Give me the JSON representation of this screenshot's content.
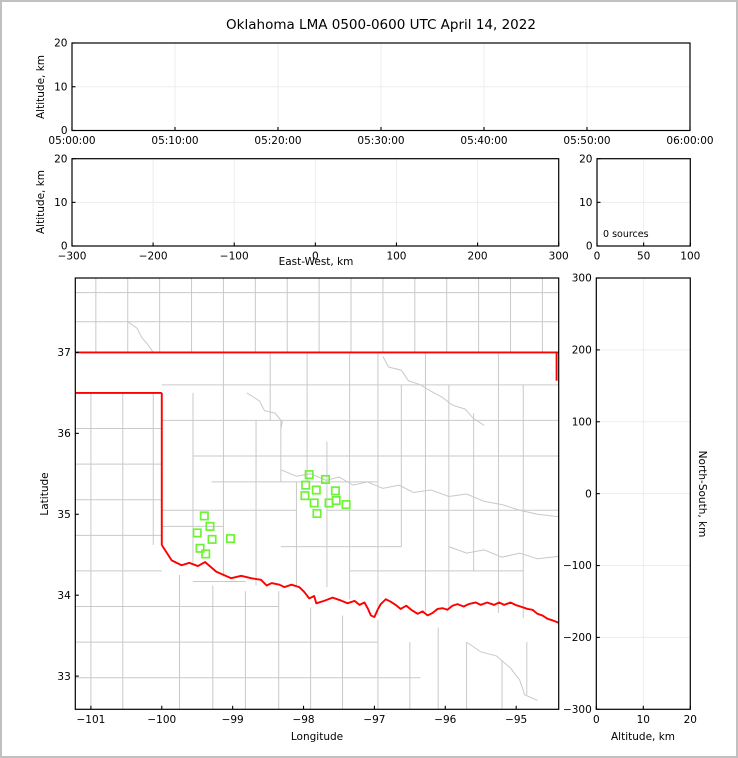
{
  "title": "Oklahoma LMA 0500-0600 UTC April 14, 2022",
  "colors": {
    "background": "#ffffff",
    "frame_border": "#c0c0c0",
    "axis": "#000000",
    "grid": "#ededed",
    "county_line": "#c9c9c9",
    "state_border": "#ff0000",
    "station_marker": "#6df335"
  },
  "chart_data": [
    {
      "panel": "time_height",
      "type": "scatter",
      "title": "Oklahoma LMA 0500-0600 UTC April 14, 2022",
      "ylabel": "Altitude, km",
      "x_range": [
        0,
        3600
      ],
      "y_range": [
        0,
        20
      ],
      "x_tick_values": [
        0,
        600,
        1200,
        1800,
        2400,
        3000,
        3600
      ],
      "x_tick_labels": [
        "05:00:00",
        "05:10:00",
        "05:20:00",
        "05:30:00",
        "05:40:00",
        "05:50:00",
        "06:00:00"
      ],
      "y_tick_values": [
        0,
        10,
        20
      ],
      "y_tick_labels": [
        "0",
        "10",
        "20"
      ],
      "grid": true,
      "series": []
    },
    {
      "panel": "east_west_height",
      "type": "scatter",
      "xlabel": "East-West, km",
      "ylabel": "Altitude, km",
      "x_range": [
        -300,
        300
      ],
      "y_range": [
        0,
        20
      ],
      "x_tick_values": [
        -300,
        -200,
        -100,
        0,
        100,
        200,
        300
      ],
      "x_tick_labels": [
        "−300",
        "−200",
        "−100",
        "0",
        "100",
        "200",
        "300"
      ],
      "y_tick_values": [
        0,
        10,
        20
      ],
      "y_tick_labels": [
        "0",
        "10",
        "20"
      ],
      "grid": true,
      "series": []
    },
    {
      "panel": "source_histogram",
      "type": "bar",
      "annotation": "0 sources",
      "x_range": [
        0,
        100
      ],
      "y_range": [
        0,
        20
      ],
      "x_tick_values": [
        0,
        50,
        100
      ],
      "x_tick_labels": [
        "0",
        "50",
        "100"
      ],
      "y_tick_values": [
        0,
        10,
        20
      ],
      "y_tick_labels": [
        "0",
        "10",
        "20"
      ],
      "grid": true,
      "series": []
    },
    {
      "panel": "plan_view",
      "type": "scatter",
      "xlabel": "Longitude",
      "ylabel": "Latitude",
      "x_range": [
        -101.22,
        -94.4
      ],
      "y_range": [
        32.59,
        37.92
      ],
      "x_tick_values": [
        -101,
        -100,
        -99,
        -98,
        -97,
        -96,
        -95
      ],
      "x_tick_labels": [
        "−101",
        "−100",
        "−99",
        "−98",
        "−97",
        "−96",
        "−95"
      ],
      "y_tick_values": [
        33,
        34,
        35,
        36,
        37
      ],
      "y_tick_labels": [
        "33",
        "34",
        "35",
        "36",
        "37"
      ],
      "grid": false,
      "stations": [
        [
          -97.92,
          35.49
        ],
        [
          -97.69,
          35.43
        ],
        [
          -97.97,
          35.36
        ],
        [
          -97.82,
          35.3
        ],
        [
          -97.98,
          35.23
        ],
        [
          -97.55,
          35.29
        ],
        [
          -97.54,
          35.17
        ],
        [
          -97.85,
          35.14
        ],
        [
          -97.64,
          35.14
        ],
        [
          -97.4,
          35.12
        ],
        [
          -97.81,
          35.01
        ],
        [
          -99.4,
          34.98
        ],
        [
          -99.32,
          34.85
        ],
        [
          -99.5,
          34.77
        ],
        [
          -99.29,
          34.69
        ],
        [
          -99.03,
          34.7
        ],
        [
          -99.46,
          34.58
        ],
        [
          -99.38,
          34.51
        ]
      ],
      "state_border": {
        "segments": [
          [
            [
              -101.22,
              37.0
            ],
            [
              -94.4,
              37.0
            ]
          ],
          [
            [
              -94.43,
              37.0
            ],
            [
              -94.43,
              36.65
            ]
          ],
          [
            [
              -101.22,
              36.5
            ],
            [
              -100.0,
              36.5
            ]
          ],
          [
            [
              -100.0,
              36.5
            ],
            [
              -100.0,
              34.62
            ]
          ]
        ],
        "red_river": [
          [
            -100.0,
            34.62
          ],
          [
            -99.86,
            34.43
          ],
          [
            -99.72,
            34.37
          ],
          [
            -99.61,
            34.4
          ],
          [
            -99.49,
            34.36
          ],
          [
            -99.39,
            34.41
          ],
          [
            -99.23,
            34.29
          ],
          [
            -99.02,
            34.21
          ],
          [
            -98.88,
            34.24
          ],
          [
            -98.74,
            34.21
          ],
          [
            -98.6,
            34.19
          ],
          [
            -98.52,
            34.12
          ],
          [
            -98.45,
            34.15
          ],
          [
            -98.34,
            34.13
          ],
          [
            -98.27,
            34.1
          ],
          [
            -98.17,
            34.13
          ],
          [
            -98.06,
            34.1
          ],
          [
            -97.99,
            34.04
          ],
          [
            -97.92,
            33.96
          ],
          [
            -97.85,
            33.99
          ],
          [
            -97.82,
            33.9
          ],
          [
            -97.71,
            33.93
          ],
          [
            -97.59,
            33.97
          ],
          [
            -97.49,
            33.94
          ],
          [
            -97.38,
            33.9
          ],
          [
            -97.28,
            33.93
          ],
          [
            -97.21,
            33.88
          ],
          [
            -97.14,
            33.91
          ],
          [
            -97.09,
            33.83
          ],
          [
            -97.05,
            33.75
          ],
          [
            -97.0,
            33.73
          ],
          [
            -96.95,
            33.83
          ],
          [
            -96.91,
            33.89
          ],
          [
            -96.84,
            33.95
          ],
          [
            -96.77,
            33.92
          ],
          [
            -96.7,
            33.88
          ],
          [
            -96.63,
            33.83
          ],
          [
            -96.55,
            33.87
          ],
          [
            -96.48,
            33.82
          ],
          [
            -96.39,
            33.77
          ],
          [
            -96.32,
            33.8
          ],
          [
            -96.25,
            33.75
          ],
          [
            -96.18,
            33.78
          ],
          [
            -96.11,
            33.83
          ],
          [
            -96.04,
            33.84
          ],
          [
            -95.97,
            33.82
          ],
          [
            -95.9,
            33.87
          ],
          [
            -95.83,
            33.89
          ],
          [
            -95.74,
            33.86
          ],
          [
            -95.67,
            33.89
          ],
          [
            -95.57,
            33.91
          ],
          [
            -95.5,
            33.88
          ],
          [
            -95.41,
            33.91
          ],
          [
            -95.31,
            33.88
          ],
          [
            -95.24,
            33.91
          ],
          [
            -95.17,
            33.88
          ],
          [
            -95.08,
            33.91
          ],
          [
            -95.01,
            33.88
          ],
          [
            -94.94,
            33.86
          ],
          [
            -94.84,
            33.83
          ],
          [
            -94.77,
            33.82
          ],
          [
            -94.7,
            33.77
          ],
          [
            -94.63,
            33.75
          ],
          [
            -94.56,
            33.71
          ],
          [
            -94.49,
            33.69
          ],
          [
            -94.4,
            33.66
          ]
        ]
      },
      "counties": {
        "v": [
          [
            -100.93,
            37.92,
            37.0
          ],
          [
            -100.48,
            37.92,
            37.0
          ],
          [
            -100.03,
            37.92,
            37.0
          ],
          [
            -99.58,
            37.92,
            37.0
          ],
          [
            -99.13,
            37.92,
            37.0
          ],
          [
            -98.68,
            37.92,
            37.0
          ],
          [
            -98.23,
            37.92,
            37.0
          ],
          [
            -97.78,
            37.92,
            37.0
          ],
          [
            -97.33,
            37.92,
            37.0
          ],
          [
            -96.88,
            37.92,
            37.0
          ],
          [
            -96.43,
            37.92,
            37.0
          ],
          [
            -95.98,
            37.92,
            37.0
          ],
          [
            -95.53,
            37.92,
            37.0
          ],
          [
            -95.08,
            37.92,
            37.0
          ],
          [
            -94.63,
            37.92,
            37.0
          ],
          [
            -101.0,
            36.5,
            32.59
          ],
          [
            -100.55,
            36.5,
            32.59
          ],
          [
            -100.12,
            36.5,
            34.62
          ],
          [
            -99.56,
            36.5,
            34.4
          ],
          [
            -99.13,
            37.0,
            34.23
          ],
          [
            -98.67,
            36.16,
            34.12
          ],
          [
            -98.47,
            37.0,
            36.16
          ],
          [
            -98.32,
            36.16,
            35.4
          ],
          [
            -98.1,
            35.4,
            34.12
          ],
          [
            -97.95,
            37.0,
            35.4
          ],
          [
            -97.67,
            35.9,
            34.1
          ],
          [
            -97.35,
            37.0,
            33.95
          ],
          [
            -96.95,
            37.0,
            33.75
          ],
          [
            -96.62,
            36.6,
            34.6
          ],
          [
            -96.28,
            37.0,
            33.8
          ],
          [
            -95.95,
            36.6,
            33.85
          ],
          [
            -95.6,
            36.25,
            34.3
          ],
          [
            -95.25,
            37.0,
            33.78
          ],
          [
            -94.9,
            36.6,
            33.72
          ],
          [
            -99.75,
            34.25,
            32.59
          ],
          [
            -99.28,
            34.12,
            32.59
          ],
          [
            -98.82,
            34.05,
            32.59
          ],
          [
            -98.35,
            34.05,
            32.59
          ],
          [
            -97.9,
            33.85,
            32.59
          ],
          [
            -97.45,
            33.75,
            32.59
          ],
          [
            -96.95,
            33.7,
            32.59
          ],
          [
            -96.5,
            33.42,
            32.59
          ],
          [
            -96.1,
            33.6,
            32.59
          ],
          [
            -95.7,
            33.42,
            32.59
          ],
          [
            -95.2,
            33.2,
            32.59
          ],
          [
            -94.85,
            33.42,
            32.77
          ]
        ],
        "h": [
          [
            37.38,
            -101.22,
            -94.4
          ],
          [
            37.74,
            -101.22,
            -94.4
          ],
          [
            36.06,
            -101.22,
            -100.0
          ],
          [
            35.62,
            -101.22,
            -100.0
          ],
          [
            35.18,
            -101.22,
            -100.0
          ],
          [
            34.74,
            -101.22,
            -100.0
          ],
          [
            34.3,
            -101.22,
            -100.0
          ],
          [
            33.86,
            -101.22,
            -98.35
          ],
          [
            33.42,
            -101.22,
            -96.95
          ],
          [
            32.98,
            -101.22,
            -96.35
          ],
          [
            36.6,
            -100.0,
            -94.4
          ],
          [
            36.16,
            -100.0,
            -94.4
          ],
          [
            35.72,
            -99.56,
            -94.4
          ],
          [
            35.4,
            -99.3,
            -96.95
          ],
          [
            35.05,
            -100.0,
            -98.1
          ],
          [
            35.05,
            -97.67,
            -94.4
          ],
          [
            34.85,
            -100.0,
            -99.13
          ],
          [
            34.6,
            -98.32,
            -96.62
          ],
          [
            34.3,
            -97.35,
            -94.9
          ],
          [
            34.17,
            -99.56,
            -98.82
          ]
        ],
        "paths": [
          [
            [
              -100.48,
              37.38
            ],
            [
              -100.35,
              37.3
            ],
            [
              -100.28,
              37.18
            ],
            [
              -100.2,
              37.1
            ],
            [
              -100.12,
              37.0
            ]
          ],
          [
            [
              -98.8,
              36.5
            ],
            [
              -98.62,
              36.4
            ],
            [
              -98.55,
              36.28
            ],
            [
              -98.4,
              36.25
            ],
            [
              -98.3,
              36.14
            ],
            [
              -98.32,
              36.05
            ]
          ],
          [
            [
              -98.32,
              35.55
            ],
            [
              -98.1,
              35.47
            ],
            [
              -97.9,
              35.5
            ],
            [
              -97.68,
              35.42
            ],
            [
              -97.5,
              35.46
            ],
            [
              -97.3,
              35.36
            ],
            [
              -97.1,
              35.4
            ],
            [
              -96.88,
              35.32
            ],
            [
              -96.65,
              35.36
            ],
            [
              -96.45,
              35.27
            ],
            [
              -96.2,
              35.3
            ],
            [
              -95.95,
              35.22
            ],
            [
              -95.7,
              35.25
            ],
            [
              -95.45,
              35.16
            ],
            [
              -95.2,
              35.12
            ],
            [
              -94.95,
              35.05
            ],
            [
              -94.7,
              35.0
            ],
            [
              -94.4,
              34.97
            ]
          ],
          [
            [
              -96.88,
              36.95
            ],
            [
              -96.8,
              36.82
            ],
            [
              -96.62,
              36.78
            ],
            [
              -96.52,
              36.65
            ],
            [
              -96.35,
              36.6
            ],
            [
              -96.2,
              36.52
            ],
            [
              -96.05,
              36.45
            ],
            [
              -95.9,
              36.35
            ],
            [
              -95.72,
              36.3
            ],
            [
              -95.6,
              36.18
            ],
            [
              -95.45,
              36.1
            ]
          ],
          [
            [
              -95.95,
              34.6
            ],
            [
              -95.7,
              34.52
            ],
            [
              -95.45,
              34.56
            ],
            [
              -95.2,
              34.47
            ],
            [
              -94.95,
              34.52
            ],
            [
              -94.7,
              34.45
            ],
            [
              -94.4,
              34.48
            ]
          ],
          [
            [
              -95.7,
              33.42
            ],
            [
              -95.5,
              33.3
            ],
            [
              -95.28,
              33.25
            ],
            [
              -95.08,
              33.1
            ],
            [
              -94.95,
              32.95
            ],
            [
              -94.88,
              32.77
            ],
            [
              -94.7,
              32.7
            ]
          ]
        ]
      }
    },
    {
      "panel": "north_south_height",
      "type": "scatter",
      "xlabel": "Altitude, km",
      "ylabel_right": "North-South, km",
      "x_range": [
        0,
        20
      ],
      "y_range": [
        -300,
        300
      ],
      "x_tick_values": [
        0,
        10,
        20
      ],
      "x_tick_labels": [
        "0",
        "10",
        "20"
      ],
      "y_tick_values": [
        300,
        200,
        100,
        0,
        -100,
        -200,
        -300
      ],
      "y_tick_labels": [
        "300",
        "200",
        "100",
        "0",
        "−100",
        "−200",
        "−300"
      ],
      "grid": true,
      "series": []
    }
  ]
}
